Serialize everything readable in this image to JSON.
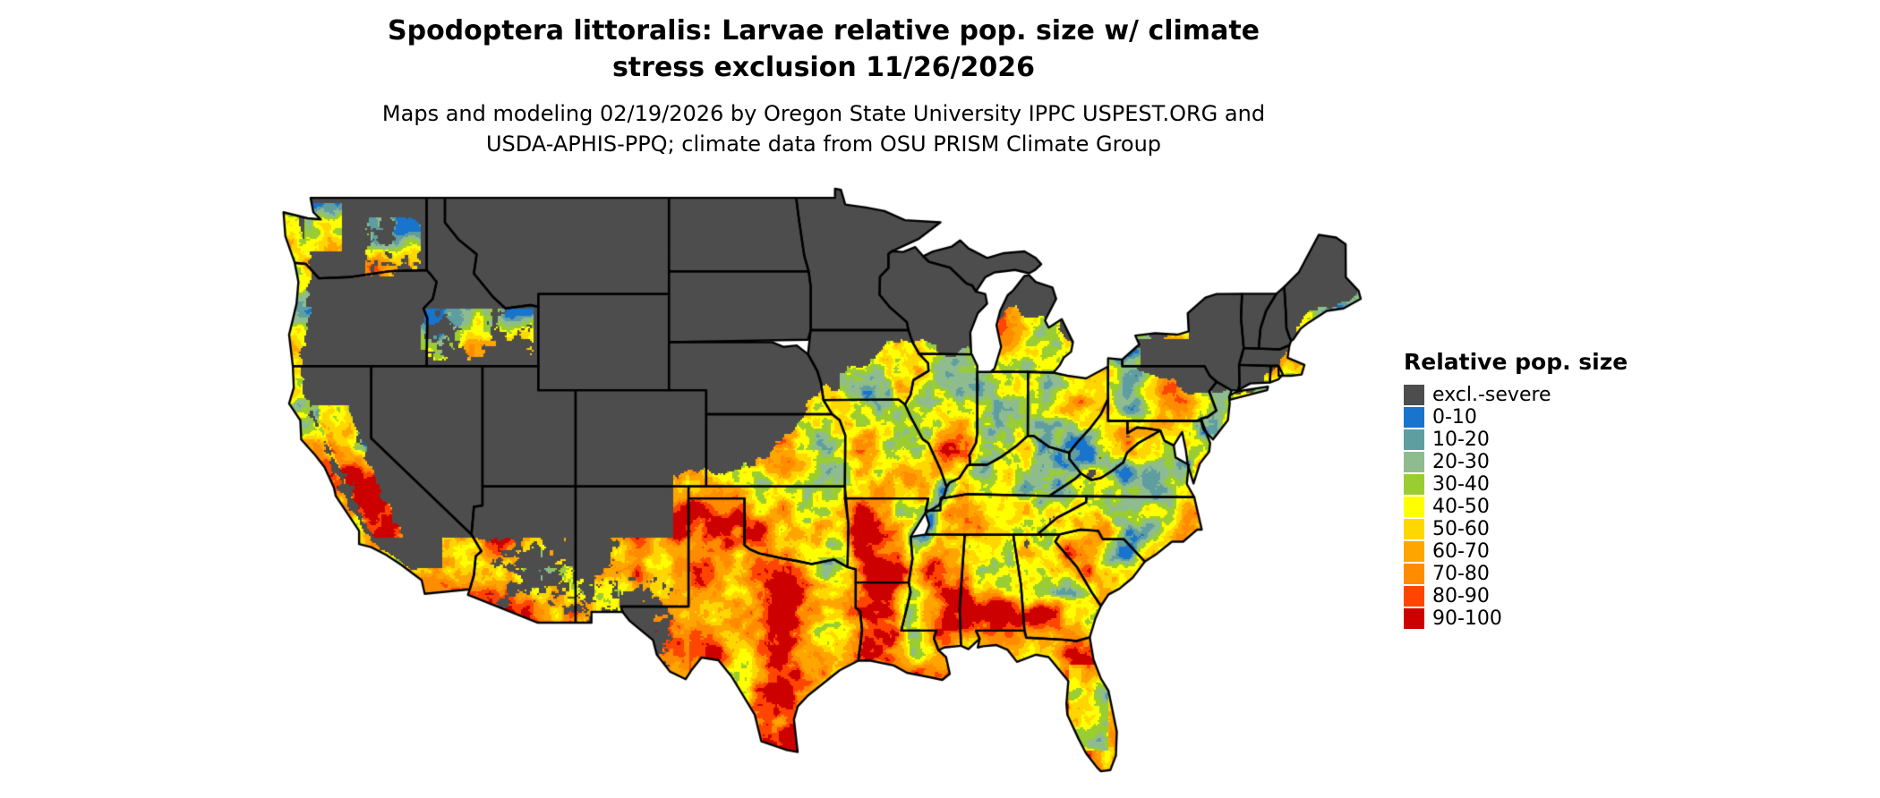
{
  "header": {
    "title_line1": "Spodoptera littoralis: Larvae relative pop. size w/ climate",
    "title_line2": "stress exclusion 11/26/2026",
    "subtitle_line1": "Maps and modeling 02/19/2026 by Oregon State University IPPC USPEST.ORG and",
    "subtitle_line2": "USDA-APHIS-PPQ; climate data from OSU PRISM Climate Group"
  },
  "map": {
    "region": "Continental United States",
    "type": "raster suitability map",
    "background_color": "#ffffff",
    "state_border_color": "#000000",
    "excluded_label": "excl.-severe",
    "excluded_color": "#4d4d4d"
  },
  "legend": {
    "title": "Relative pop. size",
    "entries": [
      {
        "label": "excl.-severe",
        "color": "#4d4d4d"
      },
      {
        "label": "0-10",
        "color": "#1874cd"
      },
      {
        "label": "10-20",
        "color": "#5f9ea0"
      },
      {
        "label": "20-30",
        "color": "#8fbc8f"
      },
      {
        "label": "30-40",
        "color": "#9acd32"
      },
      {
        "label": "40-50",
        "color": "#ffff00"
      },
      {
        "label": "50-60",
        "color": "#ffd700"
      },
      {
        "label": "60-70",
        "color": "#ffa500"
      },
      {
        "label": "70-80",
        "color": "#ff8c00"
      },
      {
        "label": "80-90",
        "color": "#ff4500"
      },
      {
        "label": "90-100",
        "color": "#cd0000"
      }
    ]
  }
}
